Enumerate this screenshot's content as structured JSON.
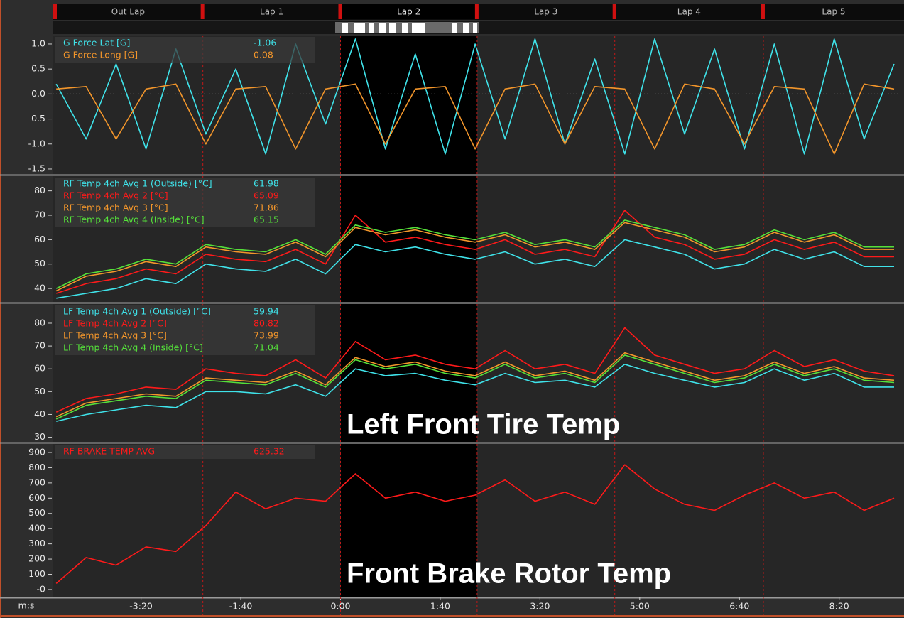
{
  "time_axis": {
    "label": "m:s",
    "xlim": [
      -288,
      565
    ],
    "xticks": [
      {
        "value": -200,
        "label": "-3:20"
      },
      {
        "value": -100,
        "label": "-1:40"
      },
      {
        "value": 0,
        "label": "0:00"
      },
      {
        "value": 100,
        "label": "1:40"
      },
      {
        "value": 200,
        "label": "3:20"
      },
      {
        "value": 300,
        "label": "5:00"
      },
      {
        "value": 400,
        "label": "6:40"
      },
      {
        "value": 500,
        "label": "8:20"
      }
    ]
  },
  "laps": {
    "names": [
      "Out Lap",
      "Lap 1",
      "Lap 2",
      "Lap 3",
      "Lap 4",
      "Lap 5"
    ],
    "boundaries": [
      -138,
      0,
      137,
      275,
      424
    ],
    "selected": 2
  },
  "chart_data": [
    {
      "type": "line",
      "ylim": [
        -1.6,
        1.17
      ],
      "yticks": [
        {
          "value": 1.0,
          "label": "1.0"
        },
        0.5,
        {
          "value": 0.0,
          "label": "0.0"
        },
        -0.5,
        {
          "value": -1.0,
          "label": "-1.0"
        },
        -1.5
      ],
      "zero_line": true,
      "x": [
        -285,
        -255,
        -225,
        -195,
        -165,
        -135,
        -105,
        -75,
        -45,
        -15,
        15,
        45,
        75,
        105,
        135,
        165,
        195,
        225,
        255,
        285,
        315,
        345,
        375,
        405,
        435,
        465,
        495,
        525,
        555
      ],
      "series": [
        {
          "name": "G Force Lat [G]",
          "color": "#3fe3ea",
          "readout": -1.06,
          "values": [
            0.2,
            -0.9,
            0.6,
            -1.1,
            0.9,
            -0.8,
            0.5,
            -1.2,
            1.0,
            -0.6,
            1.1,
            -1.1,
            0.8,
            -1.2,
            1.0,
            -0.9,
            1.1,
            -1.0,
            0.7,
            -1.2,
            1.1,
            -0.8,
            0.9,
            -1.1,
            1.0,
            -1.2,
            1.1,
            -0.9,
            0.6
          ]
        },
        {
          "name": "G Force Long [G]",
          "color": "#f3962b",
          "readout": 0.08,
          "values": [
            0.1,
            0.15,
            -0.9,
            0.1,
            0.2,
            -1.0,
            0.1,
            0.15,
            -1.1,
            0.1,
            0.2,
            -1.0,
            0.1,
            0.15,
            -1.1,
            0.1,
            0.2,
            -1.0,
            0.15,
            0.1,
            -1.1,
            0.2,
            0.1,
            -1.0,
            0.15,
            0.1,
            -1.2,
            0.2,
            0.1
          ]
        }
      ]
    },
    {
      "type": "line",
      "ylim": [
        34.5,
        86
      ],
      "yticks": [
        80,
        70,
        60,
        50,
        40
      ],
      "x": [
        -285,
        -255,
        -225,
        -195,
        -165,
        -135,
        -105,
        -75,
        -45,
        -15,
        15,
        45,
        75,
        105,
        135,
        165,
        195,
        225,
        255,
        285,
        315,
        345,
        375,
        405,
        435,
        465,
        495,
        525,
        555
      ],
      "series": [
        {
          "name": "RF Temp 4ch Avg 1 (Outside) [°C]",
          "color": "#3fe3ea",
          "readout": 61.98,
          "values": [
            36,
            38,
            40,
            44,
            42,
            50,
            48,
            47,
            52,
            46,
            58,
            55,
            57,
            54,
            52,
            55,
            50,
            52,
            49,
            60,
            57,
            54,
            48,
            50,
            56,
            52,
            55,
            49,
            49
          ]
        },
        {
          "name": "RF Temp 4ch Avg 2 [°C]",
          "color": "#ff1a1a",
          "readout": 65.09,
          "values": [
            38,
            42,
            44,
            48,
            46,
            54,
            52,
            51,
            56,
            50,
            70,
            59,
            61,
            58,
            56,
            60,
            54,
            56,
            53,
            72,
            61,
            58,
            52,
            54,
            60,
            56,
            59,
            53,
            53
          ]
        },
        {
          "name": "RF Temp 4ch Avg 3 [°C]",
          "color": "#f3962b",
          "readout": 71.86,
          "values": [
            39,
            45,
            47,
            51,
            49,
            57,
            55,
            54,
            59,
            53,
            65,
            62,
            64,
            61,
            59,
            62,
            57,
            59,
            56,
            67,
            64,
            61,
            55,
            57,
            63,
            59,
            62,
            56,
            56
          ]
        },
        {
          "name": "RF Temp 4ch Avg 4 (Inside) [°C]",
          "color": "#55e03a",
          "readout": 65.15,
          "values": [
            40,
            46,
            48,
            52,
            50,
            58,
            56,
            55,
            60,
            54,
            66,
            63,
            65,
            62,
            60,
            63,
            58,
            60,
            57,
            68,
            65,
            62,
            56,
            58,
            64,
            60,
            63,
            57,
            57
          ]
        }
      ]
    },
    {
      "type": "line",
      "ylim": [
        28,
        88.4
      ],
      "yticks": [
        80,
        70,
        60,
        50,
        40,
        30
      ],
      "annotation": "Left Front Tire Temp",
      "x": [
        -285,
        -255,
        -225,
        -195,
        -165,
        -135,
        -105,
        -75,
        -45,
        -15,
        15,
        45,
        75,
        105,
        135,
        165,
        195,
        225,
        255,
        285,
        315,
        345,
        375,
        405,
        435,
        465,
        495,
        525,
        555
      ],
      "series": [
        {
          "name": "LF Temp 4ch Avg 1 (Outside) [°C]",
          "color": "#3fe3ea",
          "readout": 59.94,
          "values": [
            37,
            40,
            42,
            44,
            43,
            50,
            50,
            49,
            53,
            48,
            60,
            57,
            58,
            55,
            53,
            58,
            54,
            55,
            52,
            62,
            58,
            55,
            52,
            54,
            60,
            55,
            58,
            52,
            52
          ]
        },
        {
          "name": "LF Temp 4ch Avg 2 [°C]",
          "color": "#ff1a1a",
          "readout": 80.82,
          "values": [
            41,
            47,
            49,
            52,
            51,
            60,
            58,
            57,
            64,
            56,
            72,
            64,
            66,
            62,
            60,
            68,
            60,
            62,
            58,
            78,
            66,
            62,
            58,
            60,
            68,
            61,
            64,
            59,
            57
          ]
        },
        {
          "name": "LF Temp 4ch Avg 3 [°C]",
          "color": "#f3962b",
          "readout": 73.99,
          "values": [
            39,
            45,
            47,
            49,
            48,
            56,
            55,
            54,
            59,
            53,
            65,
            61,
            63,
            59,
            57,
            63,
            57,
            59,
            55,
            67,
            63,
            59,
            55,
            57,
            63,
            58,
            61,
            56,
            55
          ]
        },
        {
          "name": "LF Temp 4ch Avg 4 (Inside) [°C]",
          "color": "#55e03a",
          "readout": 71.04,
          "values": [
            38,
            44,
            46,
            48,
            47,
            55,
            54,
            53,
            58,
            52,
            64,
            60,
            62,
            58,
            56,
            62,
            56,
            58,
            54,
            66,
            62,
            58,
            54,
            56,
            62,
            57,
            60,
            55,
            54
          ]
        }
      ]
    },
    {
      "type": "line",
      "ylim": [
        -47,
        956
      ],
      "yticks": [
        900,
        800,
        700,
        600,
        500,
        400,
        300,
        200,
        100,
        {
          "value": 0,
          "label": "-0"
        }
      ],
      "annotation": "Front Brake Rotor Temp",
      "x": [
        -285,
        -255,
        -225,
        -195,
        -165,
        -135,
        -105,
        -75,
        -45,
        -15,
        15,
        45,
        75,
        105,
        135,
        165,
        195,
        225,
        255,
        285,
        315,
        345,
        375,
        405,
        435,
        465,
        495,
        525,
        555
      ],
      "series": [
        {
          "name": "RF BRAKE TEMP AVG",
          "color": "#ff1a1a",
          "readout": 625.32,
          "values": [
            40,
            210,
            160,
            280,
            250,
            420,
            640,
            530,
            600,
            580,
            760,
            600,
            640,
            580,
            620,
            720,
            580,
            640,
            560,
            820,
            660,
            560,
            520,
            620,
            700,
            600,
            640,
            520,
            600
          ]
        }
      ]
    }
  ]
}
